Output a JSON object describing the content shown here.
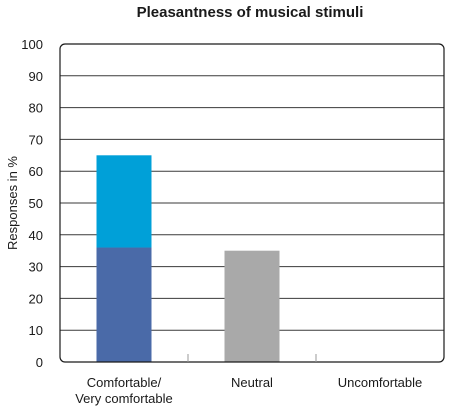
{
  "chart_data": {
    "type": "bar",
    "title": "Pleasantness of musical stimuli",
    "xlabel": "",
    "ylabel": "Responses in %",
    "ylim": [
      0,
      100
    ],
    "yticks": [
      0,
      10,
      20,
      30,
      40,
      50,
      60,
      70,
      80,
      90,
      100
    ],
    "grid": true,
    "categories": [
      [
        "Comfortable/",
        "Very comfortable"
      ],
      [
        "Neutral"
      ],
      [
        "Uncomfortable"
      ]
    ],
    "bars": [
      {
        "category_index": 0,
        "segments": [
          {
            "value": 36,
            "color": "#4a6aa8"
          },
          {
            "value": 29,
            "color": "#00a0d8"
          }
        ]
      },
      {
        "category_index": 1,
        "segments": [
          {
            "value": 35,
            "color": "#a9a9a9"
          }
        ]
      },
      {
        "category_index": 2,
        "segments": []
      }
    ]
  }
}
